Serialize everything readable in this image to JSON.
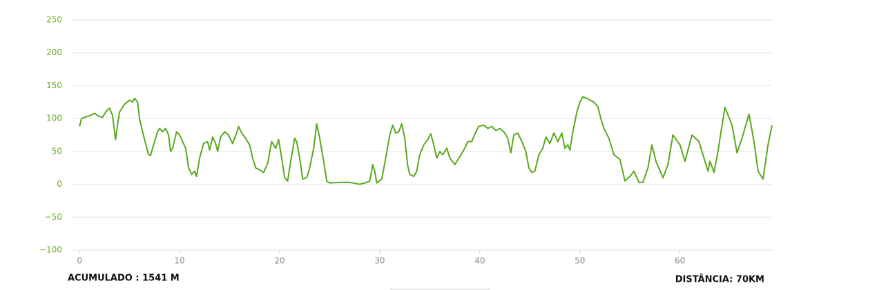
{
  "chart_data": {
    "type": "line",
    "x": [
      0,
      0.2,
      0.7,
      1.0,
      1.5,
      2.0,
      2.3,
      2.7,
      3.0,
      3.3,
      3.5,
      3.6,
      3.8,
      4.0,
      4.5,
      5.0,
      5.3,
      5.5,
      5.8,
      6.0,
      6.3,
      6.6,
      6.9,
      7.1,
      7.4,
      7.8,
      8.0,
      8.3,
      8.6,
      8.9,
      9.1,
      9.3,
      9.7,
      10.0,
      10.3,
      10.6,
      10.9,
      11.2,
      11.5,
      11.7,
      12.0,
      12.4,
      12.8,
      13.0,
      13.3,
      13.6,
      13.8,
      14.1,
      14.5,
      14.9,
      15.3,
      15.7,
      15.9,
      16.2,
      16.6,
      17.0,
      17.3,
      17.6,
      18.0,
      18.4,
      18.8,
      19.2,
      19.6,
      19.9,
      20.2,
      20.5,
      20.8,
      21.1,
      21.5,
      21.7,
      22.0,
      22.3,
      22.7,
      23.0,
      23.4,
      23.7,
      24.0,
      24.4,
      24.7,
      25.0,
      26.0,
      27.0,
      28.0,
      28.5,
      29.0,
      29.3,
      29.5,
      29.7,
      30.2,
      30.6,
      31.0,
      31.3,
      31.6,
      31.9,
      32.2,
      32.5,
      32.8,
      33.0,
      33.4,
      33.7,
      34.0,
      34.4,
      34.8,
      35.1,
      35.4,
      35.7,
      36.0,
      36.3,
      36.7,
      37.0,
      37.5,
      38.0,
      38.5,
      38.8,
      39.2,
      39.6,
      39.9,
      40.4,
      40.8,
      41.2,
      41.6,
      42.0,
      42.4,
      42.8,
      43.1,
      43.4,
      43.8,
      44.2,
      44.6,
      44.9,
      45.2,
      45.5,
      45.9,
      46.3,
      46.6,
      47.0,
      47.4,
      47.8,
      48.2,
      48.5,
      48.8,
      49.0,
      49.3,
      49.7,
      50.0,
      50.3,
      50.8,
      51.4,
      51.8,
      52.1,
      52.4,
      52.9,
      53.4,
      54.0,
      54.5,
      55.0,
      55.4,
      55.9,
      56.3,
      56.8,
      57.2,
      57.6,
      58.3,
      58.8,
      59.3,
      60.0,
      60.5,
      61.2,
      61.9,
      62.4,
      62.8,
      63.0,
      63.4,
      63.8,
      64.1,
      64.5,
      65.2,
      65.7,
      66.2,
      66.9,
      67.4,
      67.8,
      68.3,
      68.8,
      69.2
    ],
    "series": [
      {
        "color": "#58a81c",
        "values": [
          88,
          100,
          103,
          104,
          108,
          103,
          102,
          112,
          116,
          105,
          80,
          68,
          90,
          110,
          122,
          128,
          125,
          131,
          125,
          100,
          80,
          62,
          45,
          44,
          60,
          80,
          85,
          80,
          85,
          75,
          50,
          55,
          80,
          75,
          65,
          55,
          25,
          15,
          20,
          12,
          40,
          62,
          65,
          52,
          72,
          62,
          50,
          72,
          80,
          75,
          62,
          78,
          88,
          78,
          70,
          60,
          40,
          25,
          22,
          18,
          32,
          65,
          55,
          68,
          40,
          10,
          5,
          35,
          70,
          65,
          40,
          8,
          10,
          25,
          55,
          92,
          70,
          35,
          5,
          2,
          3,
          3,
          0,
          2,
          5,
          30,
          20,
          2,
          8,
          40,
          75,
          90,
          78,
          80,
          92,
          70,
          28,
          15,
          12,
          20,
          45,
          60,
          68,
          77,
          60,
          40,
          50,
          45,
          55,
          40,
          30,
          42,
          55,
          65,
          65,
          80,
          88,
          90,
          85,
          88,
          82,
          85,
          80,
          70,
          48,
          75,
          78,
          65,
          50,
          25,
          18,
          20,
          45,
          55,
          72,
          62,
          78,
          65,
          78,
          55,
          60,
          52,
          80,
          110,
          125,
          133,
          130,
          125,
          118,
          100,
          85,
          70,
          45,
          38,
          5,
          12,
          20,
          3,
          3,
          25,
          60,
          35,
          10,
          30,
          75,
          60,
          35,
          75,
          65,
          40,
          20,
          35,
          18,
          50,
          80,
          117,
          90,
          48,
          70,
          107,
          65,
          20,
          8,
          60,
          90
        ]
      }
    ],
    "xlim": [
      -0.7,
      69.2
    ],
    "ylim": [
      -100,
      250
    ],
    "xticks": [
      0,
      10,
      20,
      30,
      40,
      50,
      60
    ],
    "yticks": [
      {
        "value": -100,
        "label": "−100"
      },
      {
        "value": -50,
        "label": "−50"
      },
      0,
      50,
      100,
      150,
      200,
      250
    ],
    "grid": true,
    "annotations": [
      "ACUMULADO : 1541 M",
      "DISTÂNCIA: 70KM"
    ]
  }
}
